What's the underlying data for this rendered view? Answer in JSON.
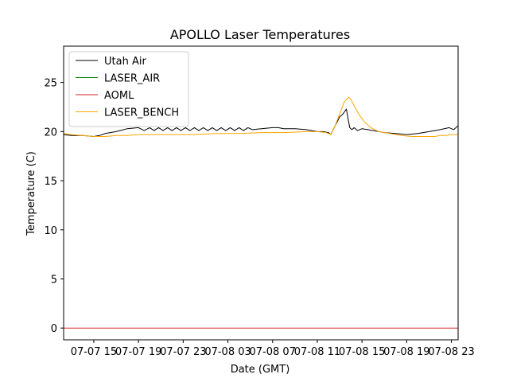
{
  "chart_data": {
    "type": "line",
    "title": "APOLLO Laser Temperatures",
    "xlabel": "Date (GMT)",
    "ylabel": "Temperature (C)",
    "xlim": [
      12.3,
      47.6
    ],
    "ylim": [
      -1.2,
      28.7
    ],
    "x_unit": "hours since 07-07 00:00 GMT",
    "xticks": [
      {
        "value": 15,
        "label": "07-07 15"
      },
      {
        "value": 19,
        "label": "07-07 19"
      },
      {
        "value": 23,
        "label": "07-07 23"
      },
      {
        "value": 27,
        "label": "07-08 03"
      },
      {
        "value": 31,
        "label": "07-08 07"
      },
      {
        "value": 35,
        "label": "07-08 11"
      },
      {
        "value": 39,
        "label": "07-08 15"
      },
      {
        "value": 43,
        "label": "07-08 19"
      },
      {
        "value": 47,
        "label": "07-08 23"
      }
    ],
    "yticks": [
      {
        "value": 0,
        "label": "0"
      },
      {
        "value": 5,
        "label": "5"
      },
      {
        "value": 10,
        "label": "10"
      },
      {
        "value": 15,
        "label": "15"
      },
      {
        "value": 20,
        "label": "20"
      },
      {
        "value": 25,
        "label": "25"
      }
    ],
    "legend_position": "top-left",
    "series": [
      {
        "name": "Utah Air",
        "color": "#000000",
        "x": [
          12.3,
          13.0,
          14.0,
          15.0,
          15.5,
          16.0,
          17.0,
          18.0,
          19.0,
          19.5,
          20.0,
          20.4,
          20.8,
          21.2,
          21.6,
          22.0,
          22.4,
          22.8,
          23.2,
          23.6,
          24.0,
          24.4,
          24.8,
          25.2,
          25.6,
          26.0,
          26.4,
          26.8,
          27.2,
          27.6,
          28.0,
          28.4,
          28.8,
          29.2,
          30.0,
          31.0,
          31.5,
          32.0,
          33.0,
          34.0,
          35.0,
          35.5,
          36.0,
          36.2,
          36.6,
          37.0,
          37.3,
          37.6,
          37.9,
          38.1,
          38.3,
          38.6,
          39.0,
          39.5,
          40.0,
          41.0,
          42.0,
          43.0,
          44.0,
          45.0,
          46.0,
          46.8,
          47.2,
          47.6
        ],
        "values": [
          19.7,
          19.6,
          19.6,
          19.5,
          19.6,
          19.8,
          20.0,
          20.3,
          20.4,
          20.1,
          20.4,
          20.1,
          20.4,
          20.1,
          20.4,
          20.1,
          20.4,
          20.1,
          20.4,
          20.1,
          20.4,
          20.1,
          20.4,
          20.1,
          20.4,
          20.1,
          20.4,
          20.1,
          20.4,
          20.1,
          20.4,
          20.1,
          20.4,
          20.2,
          20.3,
          20.4,
          20.4,
          20.3,
          20.3,
          20.2,
          20.0,
          20.0,
          19.9,
          19.7,
          20.6,
          21.5,
          21.8,
          22.3,
          20.4,
          20.2,
          20.4,
          20.1,
          20.3,
          20.2,
          20.1,
          19.9,
          19.8,
          19.7,
          19.8,
          20.0,
          20.2,
          20.4,
          20.2,
          20.6
        ]
      },
      {
        "name": "LASER_AIR",
        "color": "#008000",
        "x": [],
        "values": []
      },
      {
        "name": "AOML",
        "color": "#d62728",
        "x": [
          12.3,
          47.6
        ],
        "values": [
          0.0,
          0.0
        ]
      },
      {
        "name": "LASER_BENCH",
        "color": "#ffa500",
        "x": [
          12.3,
          13.0,
          14.0,
          15.0,
          16.0,
          17.0,
          18.0,
          19.0,
          20.0,
          22.0,
          24.0,
          26.0,
          28.0,
          30.0,
          32.0,
          34.0,
          35.0,
          35.8,
          36.2,
          36.6,
          37.0,
          37.4,
          37.8,
          38.0,
          38.3,
          38.7,
          39.2,
          39.8,
          40.5,
          41.5,
          42.5,
          43.5,
          44.5,
          45.5,
          46.0,
          46.5,
          47.0,
          47.6
        ],
        "values": [
          19.8,
          19.7,
          19.6,
          19.5,
          19.5,
          19.6,
          19.6,
          19.7,
          19.7,
          19.7,
          19.7,
          19.8,
          19.8,
          19.9,
          19.9,
          20.0,
          20.0,
          19.9,
          19.7,
          20.6,
          21.8,
          23.0,
          23.5,
          23.3,
          22.6,
          21.8,
          21.0,
          20.4,
          20.0,
          19.8,
          19.6,
          19.5,
          19.5,
          19.5,
          19.6,
          19.6,
          19.7,
          19.7
        ]
      }
    ]
  }
}
